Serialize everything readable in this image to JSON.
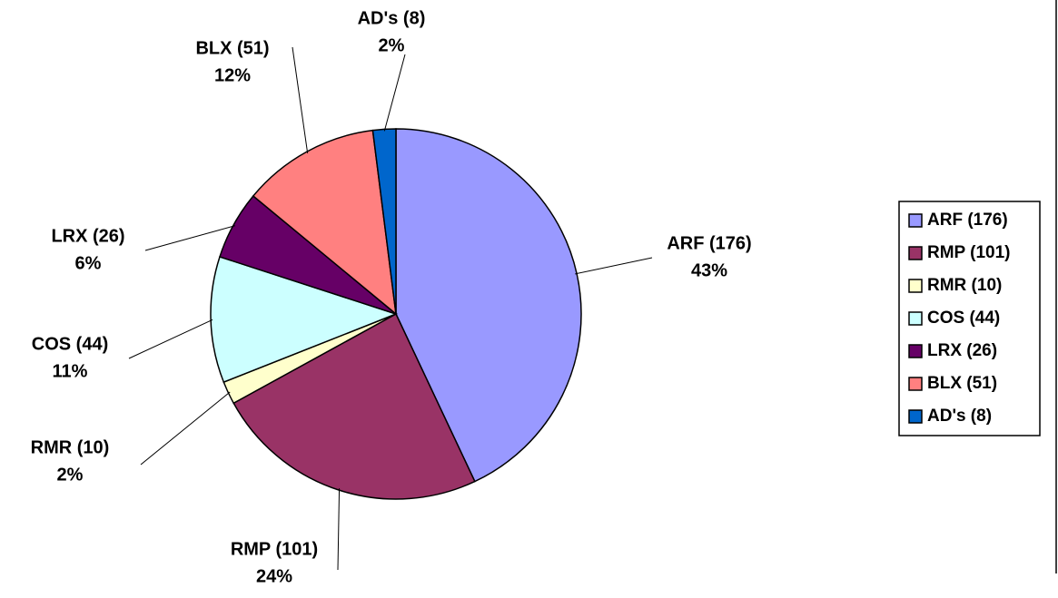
{
  "chart_data": {
    "type": "pie",
    "categories": [
      "ARF (176)",
      "RMP (101)",
      "RMR (10)",
      "COS (44)",
      "LRX (26)",
      "BLX (51)",
      "AD's (8)"
    ],
    "values": [
      43,
      24,
      2,
      11,
      6,
      12,
      2
    ],
    "value_labels": [
      "43%",
      "24%",
      "2%",
      "11%",
      "6%",
      "12%",
      "2%"
    ],
    "colors": [
      "#9999ff",
      "#993366",
      "#ffffcc",
      "#ccffff",
      "#660066",
      "#ff8080",
      "#0066cc"
    ],
    "legend": "right"
  }
}
